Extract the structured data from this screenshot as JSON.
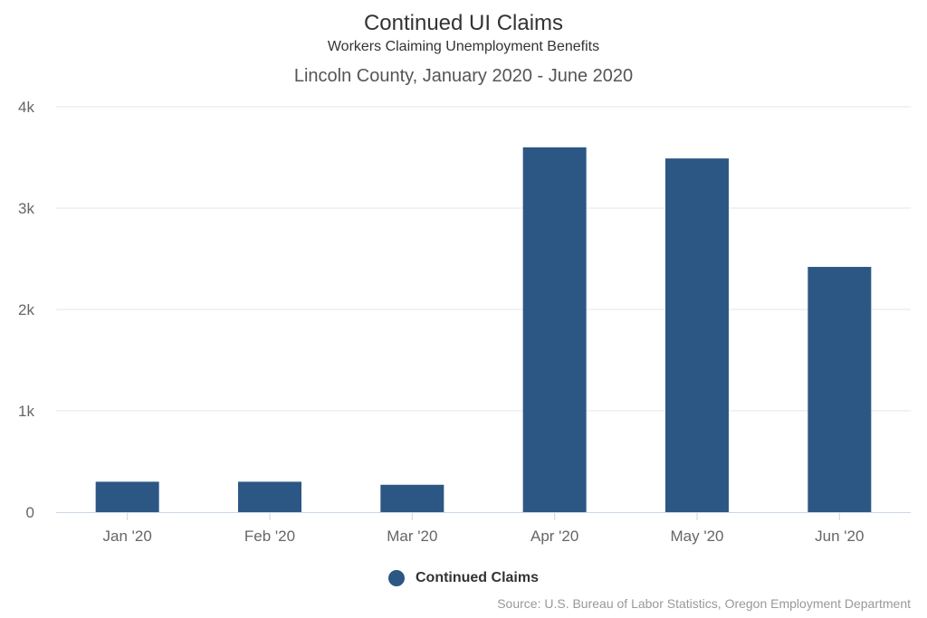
{
  "chart_data": {
    "type": "bar",
    "title": "Continued UI Claims",
    "subtitle": "Workers Claiming Unemployment Benefits",
    "subtitle2": "Lincoln County, January 2020 - June 2020",
    "categories": [
      "Jan '20",
      "Feb '20",
      "Mar '20",
      "Apr '20",
      "May '20",
      "Jun '20"
    ],
    "series": [
      {
        "name": "Continued Claims",
        "values": [
          300,
          300,
          270,
          3600,
          3490,
          2420
        ]
      }
    ],
    "ylim": [
      0,
      4000
    ],
    "yticks": [
      0,
      1000,
      2000,
      3000,
      4000
    ],
    "ytick_labels": [
      "0",
      "1k",
      "2k",
      "3k",
      "4k"
    ],
    "grid": true,
    "legend_position": "bottom-center",
    "source": "Source: U.S. Bureau of Labor Statistics, Oregon Employment Department",
    "colors": {
      "bar": "#2c5784",
      "grid": "#e6e6e6",
      "axis": "#ccd6eb"
    }
  }
}
